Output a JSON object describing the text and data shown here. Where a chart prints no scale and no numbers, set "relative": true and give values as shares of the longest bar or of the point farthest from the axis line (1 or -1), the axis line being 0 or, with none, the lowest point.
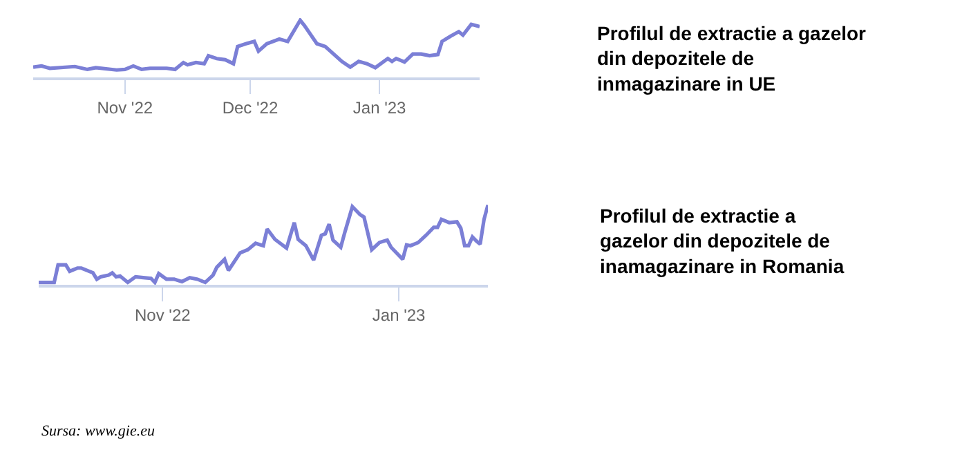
{
  "chart_data": [
    {
      "type": "line",
      "relative": true,
      "annotations": [
        "Profilul de extractie a gazelor\ndin depozitele de\ninmagazinare in UE"
      ],
      "xlim": [
        "2022-10-10",
        "2023-01-25"
      ],
      "xticks": [
        {
          "value": "2022-11-01",
          "label": "Nov '22"
        },
        {
          "value": "2022-12-01",
          "label": "Dec '22"
        },
        {
          "value": "2023-01-01",
          "label": "Jan '23"
        }
      ],
      "grid": false,
      "marker": "none",
      "line_style": "solid",
      "series": [
        {
          "color": "#7b7fd6",
          "x": [
            "2022-10-10",
            "2022-10-12",
            "2022-10-14",
            "2022-10-20",
            "2022-10-23",
            "2022-10-25",
            "2022-10-30",
            "2022-11-01",
            "2022-11-03",
            "2022-11-05",
            "2022-11-07",
            "2022-11-11",
            "2022-11-13",
            "2022-11-15",
            "2022-11-16",
            "2022-11-18",
            "2022-11-20",
            "2022-11-21",
            "2022-11-23",
            "2022-11-25",
            "2022-11-27",
            "2022-11-28",
            "2022-11-30",
            "2022-12-02",
            "2022-12-03",
            "2022-12-05",
            "2022-12-08",
            "2022-12-10",
            "2022-12-13",
            "2022-12-14",
            "2022-12-17",
            "2022-12-19",
            "2022-12-23",
            "2022-12-25",
            "2022-12-27",
            "2022-12-29",
            "2022-12-31",
            "2023-01-03",
            "2023-01-04",
            "2023-01-05",
            "2023-01-07",
            "2023-01-09",
            "2023-01-11",
            "2023-01-13",
            "2023-01-15",
            "2023-01-16",
            "2023-01-18",
            "2023-01-20",
            "2023-01-21",
            "2023-01-23",
            "2023-01-25"
          ],
          "values": [
            0.18,
            0.2,
            0.16,
            0.19,
            0.14,
            0.17,
            0.13,
            0.14,
            0.2,
            0.14,
            0.16,
            0.16,
            0.14,
            0.26,
            0.22,
            0.26,
            0.24,
            0.38,
            0.33,
            0.31,
            0.24,
            0.54,
            0.59,
            0.63,
            0.46,
            0.59,
            0.67,
            0.63,
            1.0,
            0.91,
            0.59,
            0.54,
            0.28,
            0.18,
            0.28,
            0.24,
            0.17,
            0.33,
            0.28,
            0.33,
            0.27,
            0.41,
            0.41,
            0.38,
            0.4,
            0.63,
            0.72,
            0.8,
            0.74,
            0.93,
            0.89
          ]
        }
      ]
    },
    {
      "type": "line",
      "relative": true,
      "xlim": [
        "2022-09-30",
        "2023-01-24"
      ],
      "xticks": [
        {
          "value": "2022-11-01",
          "label": "Nov '22"
        },
        {
          "value": "2023-01-01",
          "label": "Jan '23"
        }
      ],
      "grid": false,
      "marker": "none",
      "line_style": "solid",
      "annotations": [
        "Profilul de extractie a\ngazelor din depozitele de\ninamagazinare in Romania",
        "Sursa: www.gie.eu"
      ],
      "series": [
        {
          "color": "#7b7fd6",
          "x": [
            "2022-09-30",
            "2022-10-04",
            "2022-10-05",
            "2022-10-07",
            "2022-10-08",
            "2022-10-10",
            "2022-10-11",
            "2022-10-13",
            "2022-10-14",
            "2022-10-15",
            "2022-10-16",
            "2022-10-18",
            "2022-10-19",
            "2022-10-20",
            "2022-10-21",
            "2022-10-23",
            "2022-10-25",
            "2022-10-27",
            "2022-10-29",
            "2022-10-30",
            "2022-10-31",
            "2022-11-02",
            "2022-11-04",
            "2022-11-06",
            "2022-11-08",
            "2022-11-10",
            "2022-11-12",
            "2022-11-14",
            "2022-11-15",
            "2022-11-17",
            "2022-11-18",
            "2022-11-21",
            "2022-11-23",
            "2022-11-25",
            "2022-11-27",
            "2022-11-28",
            "2022-11-30",
            "2022-12-03",
            "2022-12-05",
            "2022-12-06",
            "2022-12-08",
            "2022-12-10",
            "2022-12-12",
            "2022-12-13",
            "2022-12-14",
            "2022-12-15",
            "2022-12-17",
            "2022-12-18",
            "2022-12-20",
            "2022-12-22",
            "2022-12-23",
            "2022-12-25",
            "2022-12-27",
            "2022-12-29",
            "2022-12-30",
            "2023-01-02",
            "2023-01-03",
            "2023-01-04",
            "2023-01-06",
            "2023-01-08",
            "2023-01-10",
            "2023-01-11",
            "2023-01-12",
            "2023-01-14",
            "2023-01-16",
            "2023-01-17",
            "2023-01-18",
            "2023-01-19",
            "2023-01-20",
            "2023-01-21",
            "2023-01-22",
            "2023-01-23",
            "2023-01-24"
          ],
          "values": [
            0.03,
            0.03,
            0.25,
            0.25,
            0.17,
            0.21,
            0.21,
            0.17,
            0.15,
            0.07,
            0.1,
            0.12,
            0.15,
            0.1,
            0.11,
            0.03,
            0.1,
            0.09,
            0.08,
            0.03,
            0.14,
            0.07,
            0.07,
            0.04,
            0.09,
            0.07,
            0.03,
            0.12,
            0.22,
            0.32,
            0.18,
            0.4,
            0.44,
            0.52,
            0.49,
            0.7,
            0.57,
            0.46,
            0.78,
            0.57,
            0.49,
            0.31,
            0.62,
            0.64,
            0.76,
            0.56,
            0.47,
            0.65,
            0.98,
            0.88,
            0.85,
            0.44,
            0.53,
            0.56,
            0.47,
            0.32,
            0.5,
            0.49,
            0.53,
            0.62,
            0.72,
            0.72,
            0.82,
            0.78,
            0.79,
            0.71,
            0.49,
            0.49,
            0.6,
            0.55,
            0.51,
            0.82,
            1.0
          ]
        }
      ]
    }
  ]
}
